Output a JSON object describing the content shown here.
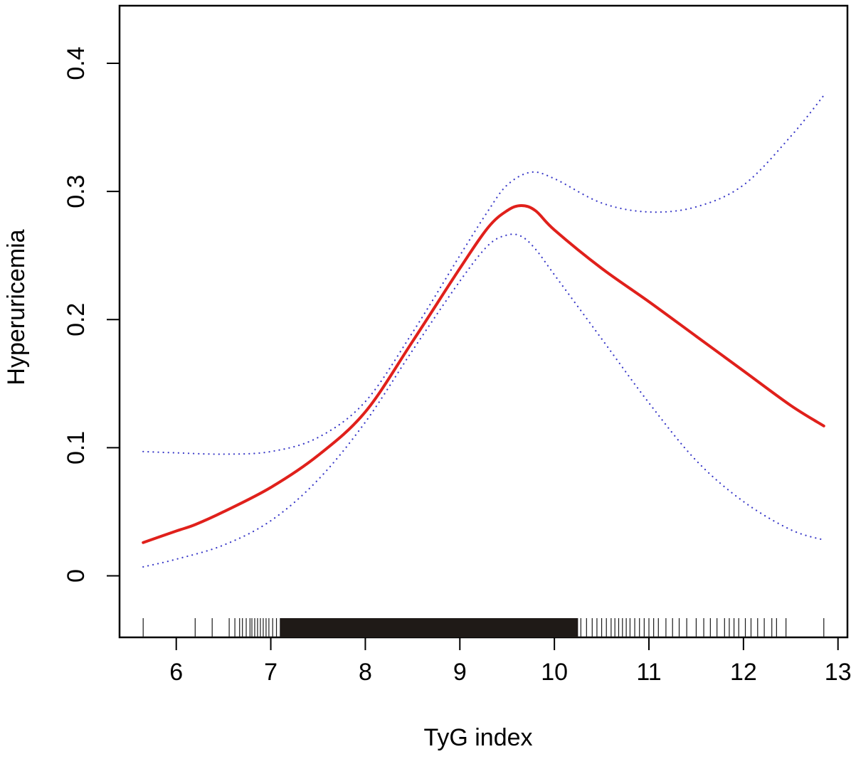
{
  "chart_data": {
    "type": "line",
    "title": "",
    "xlabel": "TyG index",
    "ylabel": "Hyperuricemia",
    "xlim": [
      5.4,
      13.1
    ],
    "ylim": [
      -0.048,
      0.445
    ],
    "x_ticks": [
      6,
      7,
      8,
      9,
      10,
      11,
      12,
      13
    ],
    "y_ticks": [
      0,
      0.1,
      0.2,
      0.3,
      0.4
    ],
    "y_tick_labels": [
      "0",
      "0.1",
      "0.2",
      "0.3",
      "0.4"
    ],
    "grid": false,
    "legend": "none",
    "series": [
      {
        "role": "estimate",
        "color": "#e0201b",
        "style": "solid",
        "x": [
          5.65,
          6.0,
          6.2,
          6.5,
          7.0,
          7.5,
          8.0,
          8.5,
          9.0,
          9.3,
          9.5,
          9.65,
          9.8,
          10.0,
          10.5,
          11.0,
          11.5,
          12.0,
          12.5,
          12.85
        ],
        "y": [
          0.026,
          0.035,
          0.04,
          0.05,
          0.069,
          0.094,
          0.128,
          0.183,
          0.24,
          0.272,
          0.285,
          0.289,
          0.285,
          0.27,
          0.24,
          0.214,
          0.187,
          0.16,
          0.133,
          0.117
        ]
      },
      {
        "role": "upper-ci",
        "color": "#3a3ac8",
        "style": "dotted",
        "x": [
          5.65,
          6.0,
          6.5,
          7.0,
          7.5,
          8.0,
          8.5,
          9.0,
          9.3,
          9.5,
          9.75,
          10.0,
          10.5,
          11.0,
          11.5,
          12.0,
          12.5,
          12.85
        ],
        "y": [
          0.097,
          0.096,
          0.095,
          0.097,
          0.108,
          0.136,
          0.19,
          0.25,
          0.285,
          0.305,
          0.315,
          0.31,
          0.291,
          0.284,
          0.288,
          0.305,
          0.343,
          0.375
        ]
      },
      {
        "role": "lower-ci",
        "color": "#3a3ac8",
        "style": "dotted",
        "x": [
          5.65,
          6.0,
          6.5,
          7.0,
          7.5,
          8.0,
          8.5,
          9.0,
          9.3,
          9.5,
          9.65,
          9.8,
          10.0,
          10.5,
          11.0,
          11.5,
          12.0,
          12.5,
          12.85
        ],
        "y": [
          0.007,
          0.013,
          0.024,
          0.043,
          0.075,
          0.12,
          0.176,
          0.23,
          0.258,
          0.266,
          0.265,
          0.255,
          0.235,
          0.185,
          0.135,
          0.09,
          0.058,
          0.036,
          0.028
        ]
      }
    ],
    "rug": {
      "sparse": [
        5.65,
        6.2,
        6.38,
        6.56,
        6.62,
        6.67,
        6.7,
        6.74,
        6.78,
        6.8,
        6.83,
        6.86,
        6.89,
        6.92,
        6.95,
        6.98,
        7.02,
        7.06,
        7.1,
        10.28,
        10.34,
        10.4,
        10.45,
        10.5,
        10.55,
        10.6,
        10.64,
        10.68,
        10.72,
        10.76,
        10.8,
        10.85,
        10.9,
        10.95,
        11.0,
        11.05,
        11.1,
        11.18,
        11.25,
        11.32,
        11.4,
        11.5,
        11.58,
        11.65,
        11.72,
        11.8,
        11.85,
        11.9,
        11.95,
        12.02,
        12.08,
        12.15,
        12.22,
        12.3,
        12.35,
        12.45,
        12.85
      ],
      "dense_from": 7.1,
      "dense_to": 10.25
    }
  }
}
